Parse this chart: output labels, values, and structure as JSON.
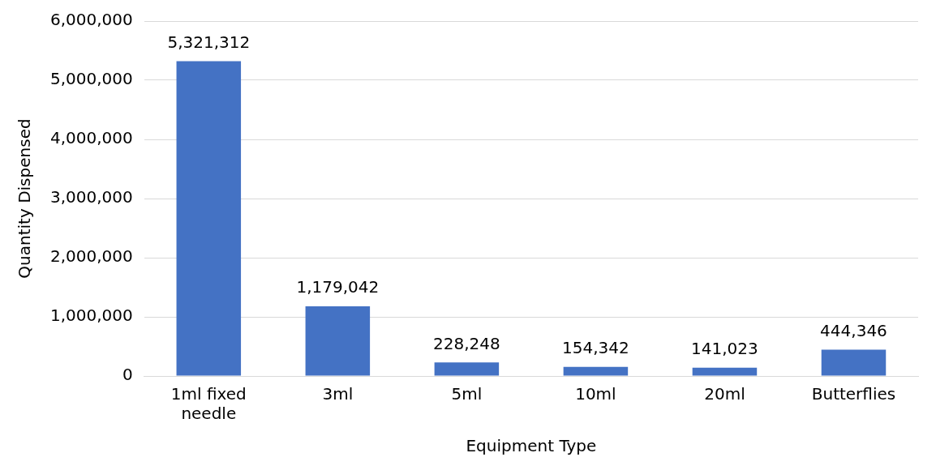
{
  "chart_data": {
    "type": "bar",
    "xlabel": "Equipment Type",
    "ylabel": "Quantity Dispensed",
    "categories": [
      "1ml fixed needle",
      "3ml",
      "5ml",
      "10ml",
      "20ml",
      "Butterflies"
    ],
    "values": [
      5321312,
      1179042,
      228248,
      154342,
      141023,
      444346
    ],
    "value_labels": [
      "5,321,312",
      "1,179,042",
      "228,248",
      "154,342",
      "141,023",
      "444,346"
    ],
    "color": "#4472c4",
    "ylim": [
      0,
      6000000
    ],
    "yticks": [
      0,
      {
        "value": 1000000,
        "label": "1,000,000"
      },
      {
        "value": 2000000,
        "label": "2,000,000"
      },
      {
        "value": 3000000,
        "label": "3,000,000"
      },
      {
        "value": 4000000,
        "label": "4,000,000"
      },
      {
        "value": 5000000,
        "label": "5,000,000"
      },
      {
        "value": 6000000,
        "label": "6,000,000"
      }
    ],
    "grid": "y"
  }
}
